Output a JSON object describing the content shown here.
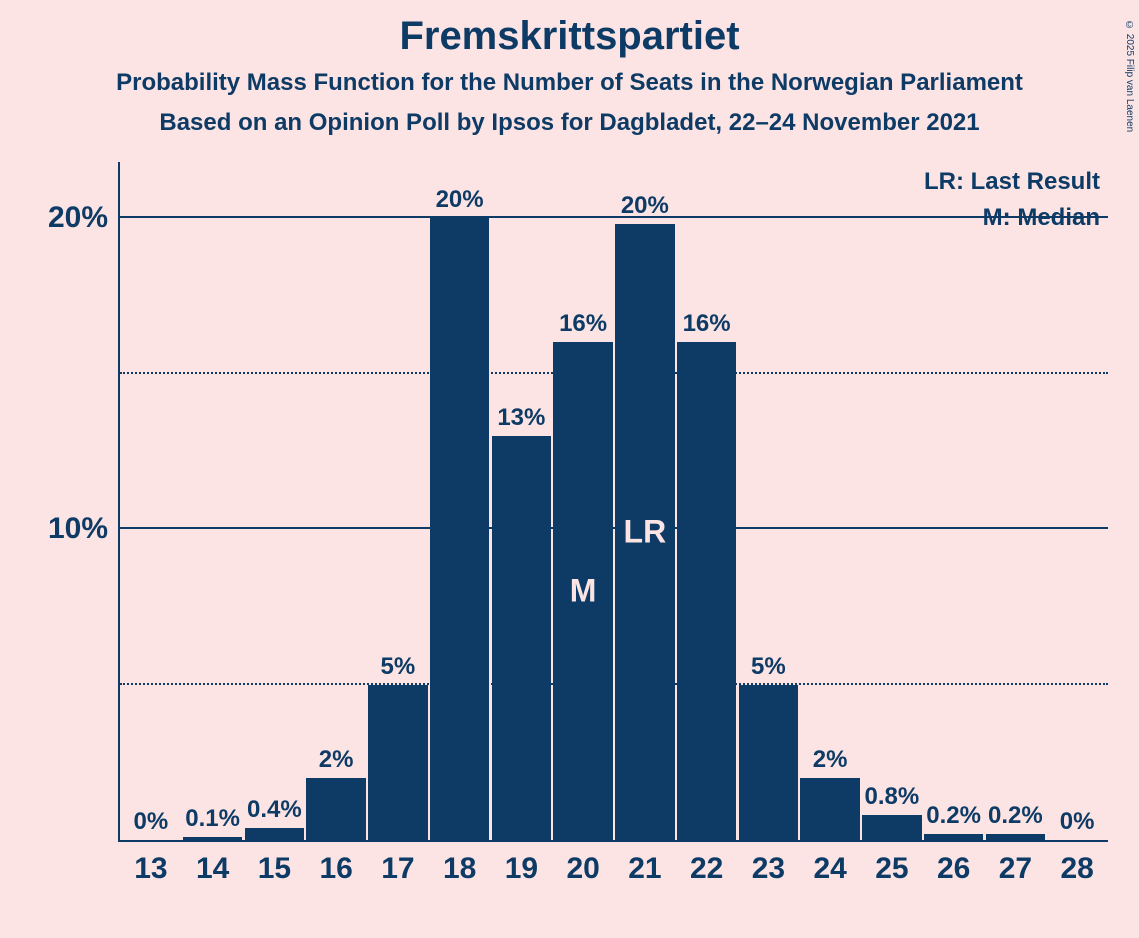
{
  "chart": {
    "type": "bar",
    "title": "Fremskrittspartiet",
    "subtitle1": "Probability Mass Function for the Number of Seats in the Norwegian Parliament",
    "subtitle2": "Based on an Opinion Poll by Ipsos for Dagbladet, 22–24 November 2021",
    "background_color": "#fce4e4",
    "bar_color": "#0d3b66",
    "text_color": "#0d3b66",
    "inner_label_color": "#fce4e4",
    "title_fontsize": 40,
    "subtitle_fontsize": 24,
    "axis_label_fontsize": 30,
    "bar_label_fontsize": 24,
    "inner_label_fontsize": 32,
    "ylim_max": 21.8,
    "y_gridlines": [
      {
        "value": 5,
        "style": "dotted",
        "label": ""
      },
      {
        "value": 10,
        "style": "solid",
        "label": "10%"
      },
      {
        "value": 15,
        "style": "dotted",
        "label": ""
      },
      {
        "value": 20,
        "style": "solid",
        "label": "20%"
      }
    ],
    "categories": [
      "13",
      "14",
      "15",
      "16",
      "17",
      "18",
      "19",
      "20",
      "21",
      "22",
      "23",
      "24",
      "25",
      "26",
      "27",
      "28"
    ],
    "values": [
      0,
      0.1,
      0.4,
      2,
      5,
      20,
      13,
      16,
      19.8,
      16,
      5,
      2,
      0.8,
      0.2,
      0.2,
      0
    ],
    "value_labels": [
      "0%",
      "0.1%",
      "0.4%",
      "2%",
      "5%",
      "20%",
      "13%",
      "16%",
      "20%",
      "16%",
      "5%",
      "2%",
      "0.8%",
      "0.2%",
      "0.2%",
      "0%"
    ],
    "inner_labels": {
      "7": "M",
      "8": "LR"
    },
    "legend": {
      "lr": "LR: Last Result",
      "m": "M: Median"
    },
    "copyright": "© 2025 Filip van Laenen"
  }
}
